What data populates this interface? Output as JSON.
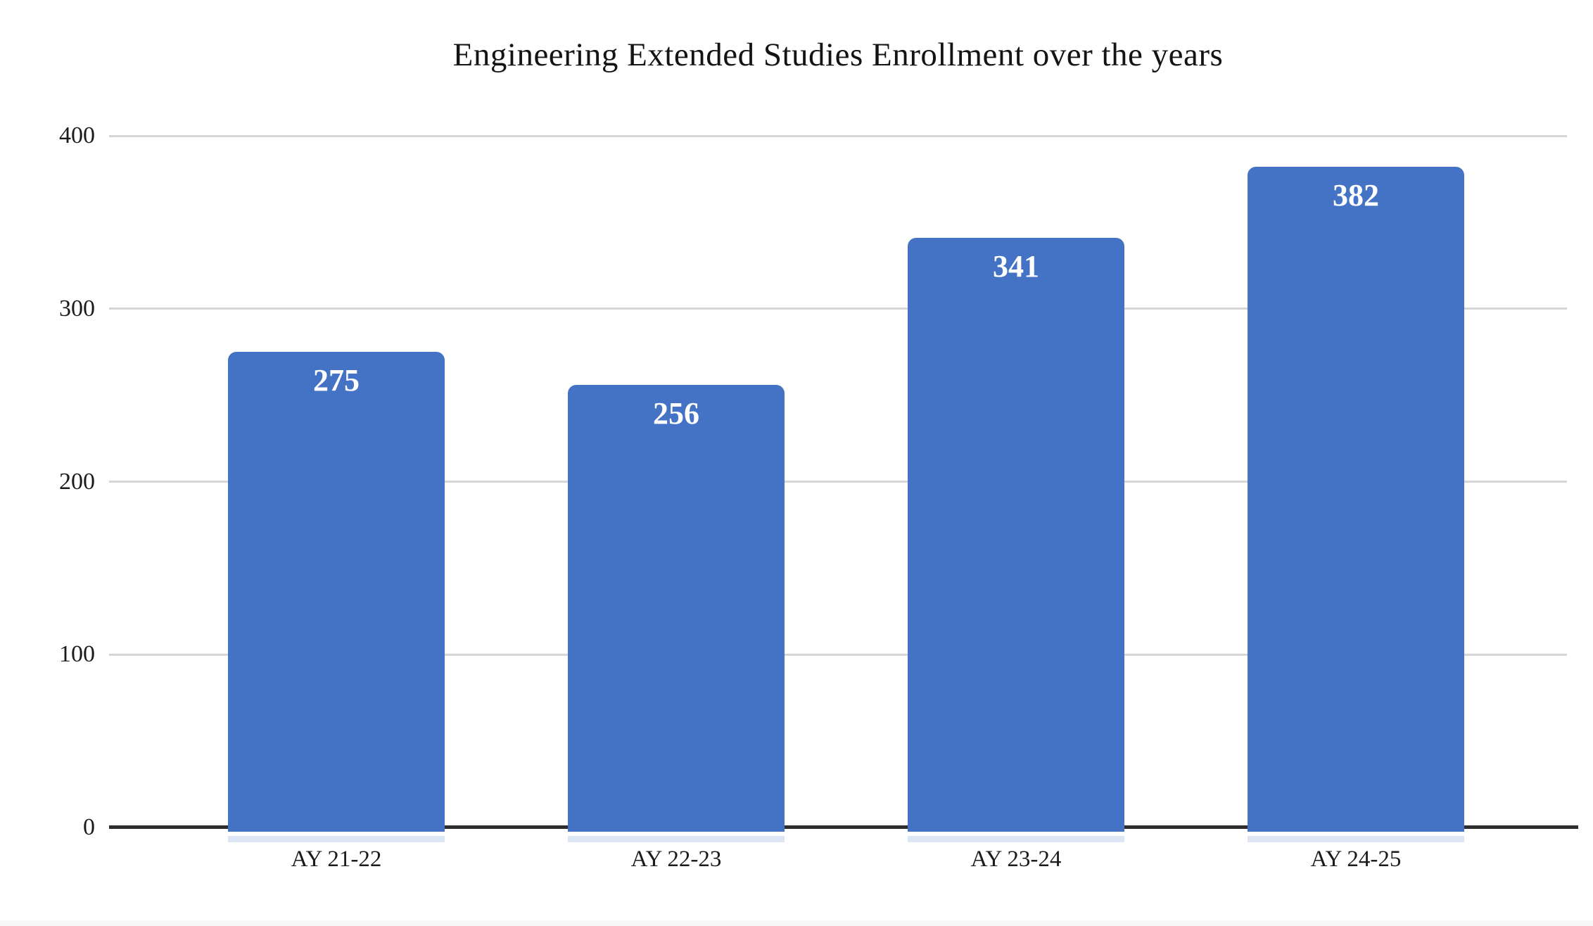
{
  "page": {
    "background_color": "#ffffff",
    "footer_strip_color": "#f7f7f8"
  },
  "chart_data": {
    "type": "bar",
    "title": "Engineering Extended Studies Enrollment over the years",
    "categories": [
      "AY 21-22",
      "AY 22-23",
      "AY 23-24",
      "AY 24-25"
    ],
    "values": [
      275,
      256,
      341,
      382
    ],
    "bar_labels": [
      "275",
      "256",
      "341",
      "382"
    ],
    "xlabel": "",
    "ylabel": "",
    "ylim": [
      0,
      400
    ],
    "y_ticks": [
      0,
      100,
      200,
      300,
      400
    ],
    "grid": true,
    "legend_position": "none",
    "bar_color": "#4472c4",
    "bar_label_color": "#ffffff",
    "gridline_color": "#d6d6d6",
    "axis_line_color": "#2d2d2d",
    "text_color": "#1b1b1b"
  }
}
